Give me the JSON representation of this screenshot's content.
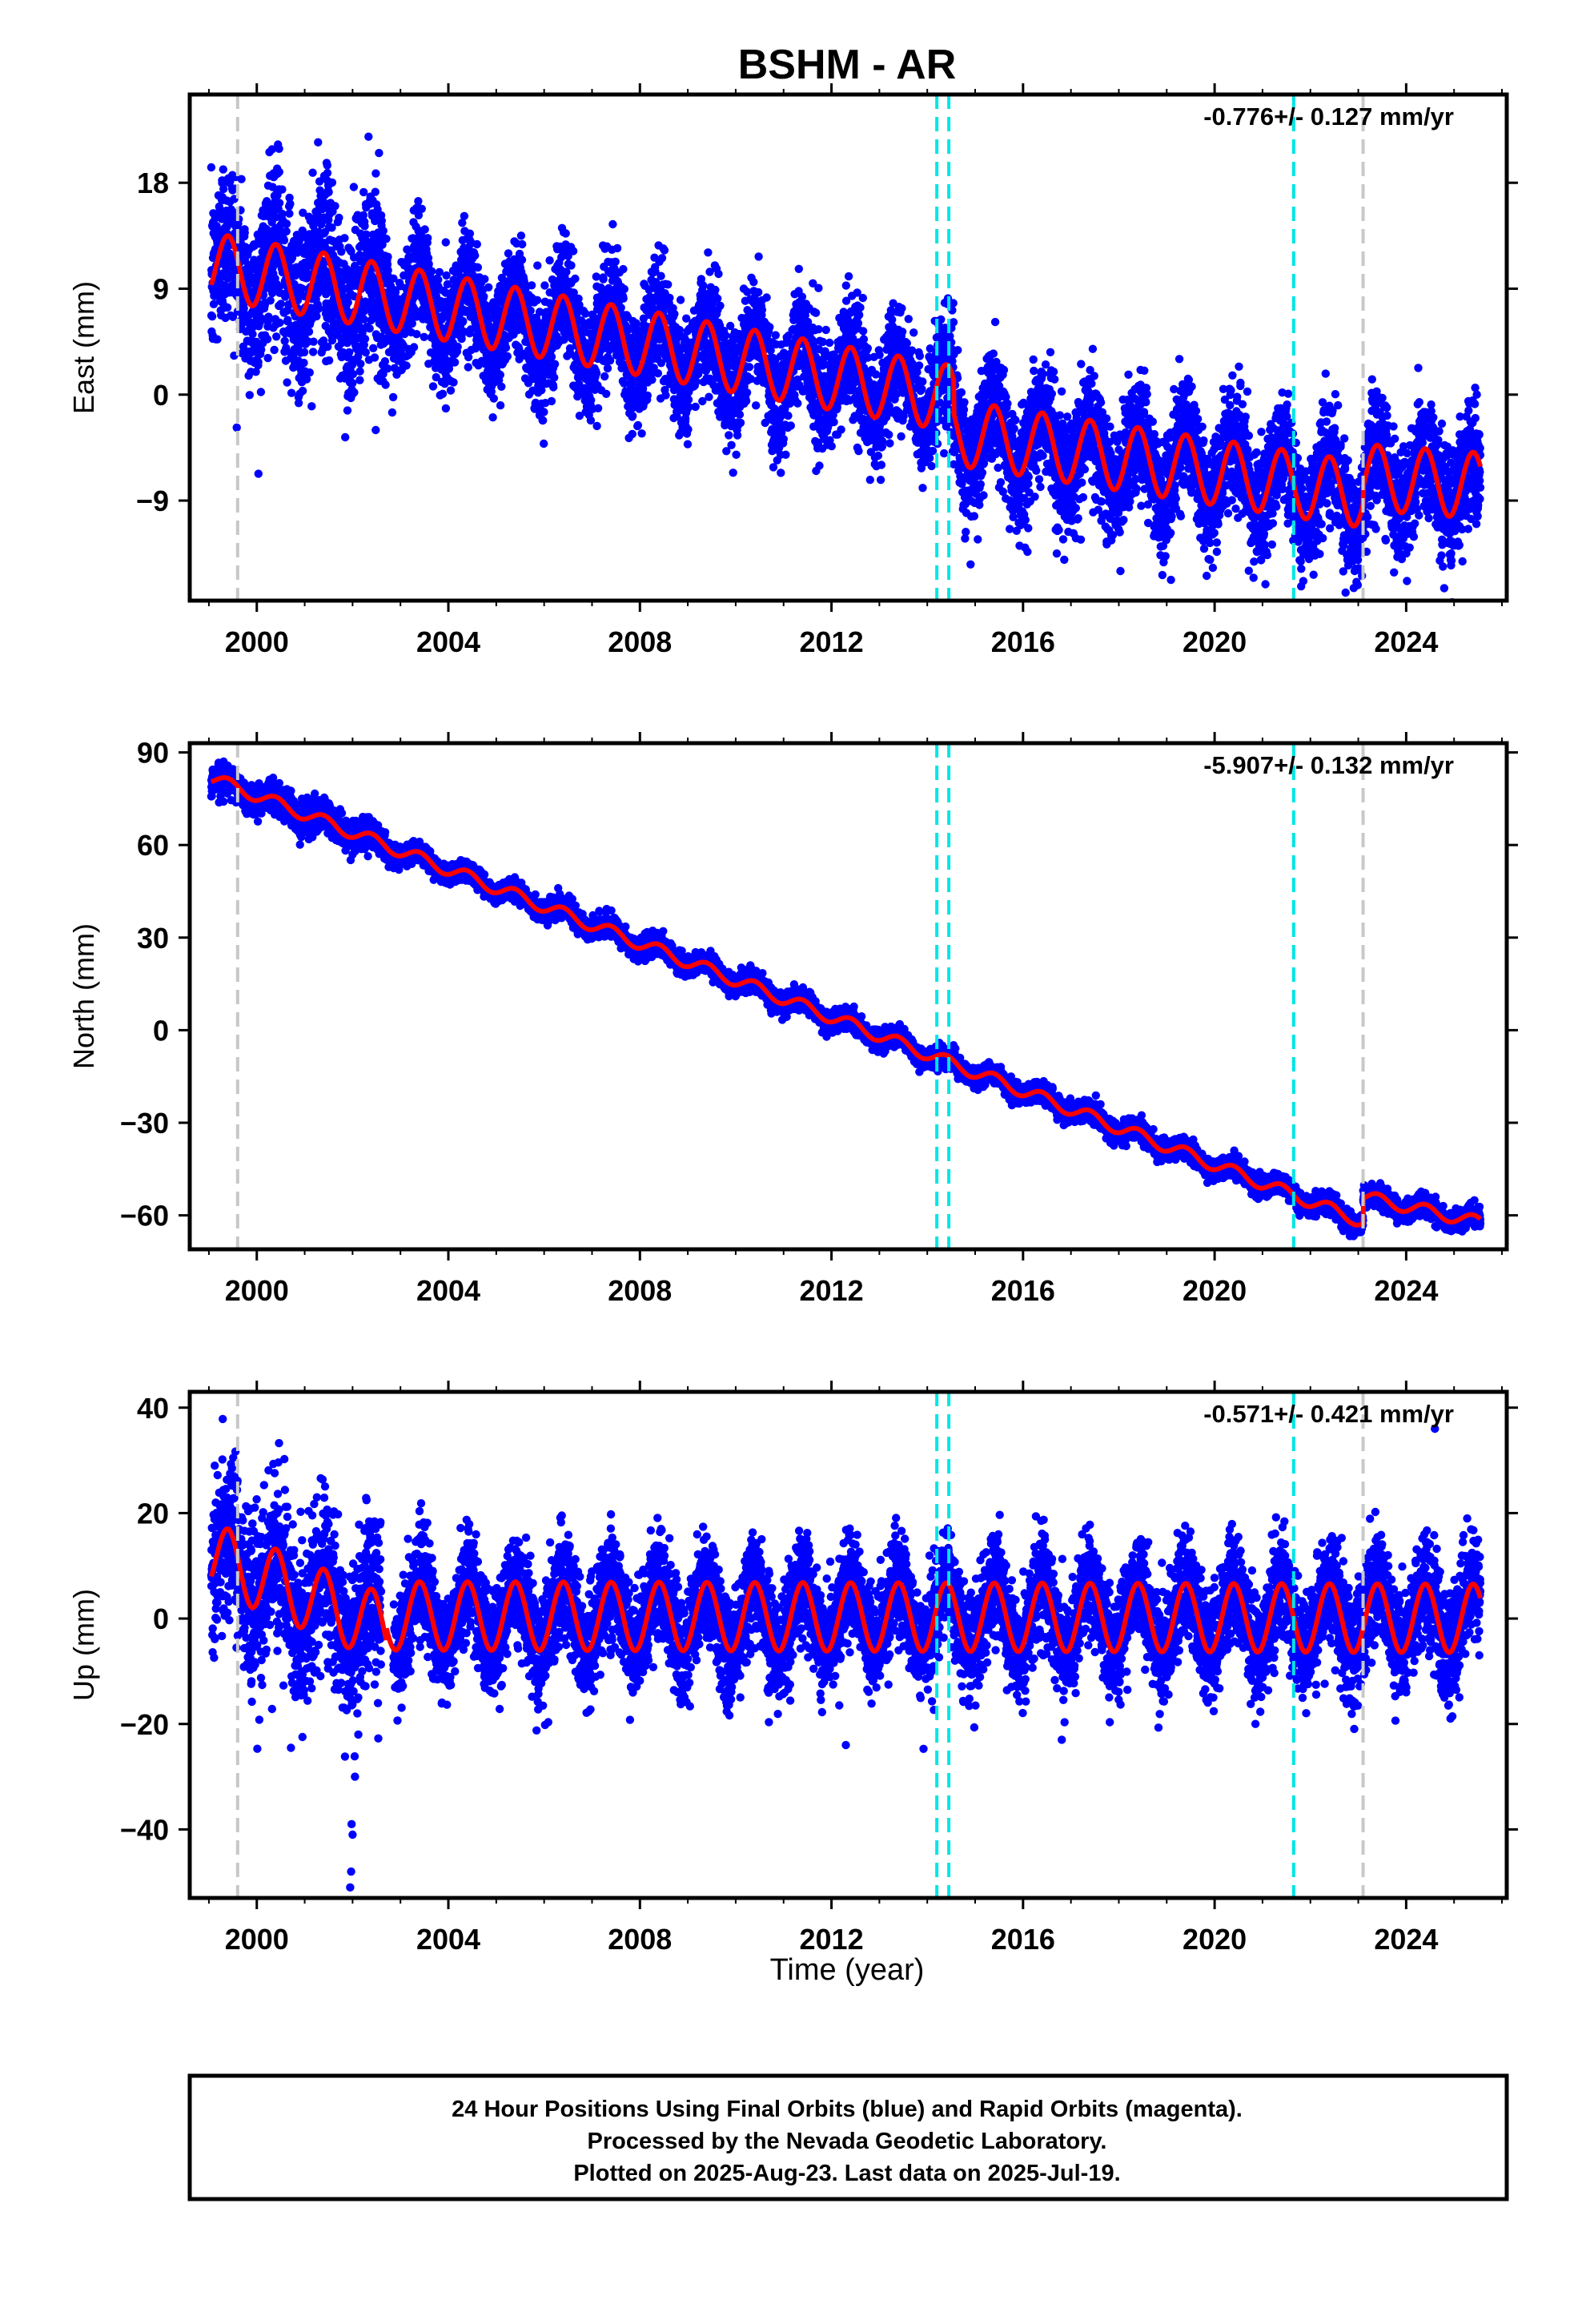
{
  "title": "BSHM - AR",
  "colors": {
    "final_orbits": "#0000ff",
    "model": "#ff0000",
    "equipment_change": "#c8c8c8",
    "earthquake": "#00e5e5",
    "frame": "#000000"
  },
  "chart_data": [
    {
      "type": "scatter",
      "name": "east",
      "ylabel": "East (mm)",
      "rate_text": "-0.776+/- 0.127 mm/yr",
      "xlim": [
        1998.6,
        2026.1
      ],
      "ylim": [
        -17.5,
        25.5
      ],
      "yticks": [
        18,
        9,
        0,
        -9
      ],
      "ytick_labels": [
        "18",
        "9",
        "0",
        "−9"
      ],
      "xticks": [
        2000,
        2004,
        2008,
        2012,
        2016,
        2020,
        2024
      ],
      "xtick_labels": [
        "2000",
        "2004",
        "2008",
        "2012",
        "2016",
        "2020",
        "2024"
      ],
      "grey_dashed_lines_at": [
        1999.6,
        2023.1
      ],
      "cyan_dashed_lines_at": [
        2014.2,
        2014.45,
        2021.65
      ],
      "model_trend": [
        {
          "from": 1999.0,
          "to": 2014.55,
          "intercept_at_start": 11.0,
          "slope_mm_per_yr": -0.73
        },
        {
          "from": 2014.55,
          "to": 2023.1,
          "intercept_at_start": -3.2,
          "slope_mm_per_yr": -0.62
        },
        {
          "from": 2023.1,
          "to": 2025.55,
          "intercept_at_start": -7.0,
          "slope_mm_per_yr": -0.3
        }
      ],
      "seasonal_amplitude_mm": 2.8,
      "scatter_noise_mm": 2.4
    },
    {
      "type": "scatter",
      "name": "north",
      "ylabel": "North (mm)",
      "rate_text": "-5.907+/- 0.132 mm/yr",
      "xlim": [
        1998.6,
        2026.1
      ],
      "ylim": [
        -71,
        93
      ],
      "yticks": [
        90,
        60,
        30,
        0,
        -30,
        -60
      ],
      "ytick_labels": [
        "90",
        "60",
        "30",
        "0",
        "−30",
        "−60"
      ],
      "xticks": [
        2000,
        2004,
        2008,
        2012,
        2016,
        2020,
        2024
      ],
      "xtick_labels": [
        "2000",
        "2004",
        "2008",
        "2012",
        "2016",
        "2020",
        "2024"
      ],
      "grey_dashed_lines_at": [
        1999.6,
        2023.1
      ],
      "cyan_dashed_lines_at": [
        2014.2,
        2014.45,
        2021.65
      ],
      "model_trend": [
        {
          "from": 1999.0,
          "to": 2023.1,
          "intercept_at_start": 82.0,
          "slope_mm_per_yr": -5.98
        },
        {
          "from": 2023.1,
          "to": 2025.55,
          "intercept_at_start": -54.0,
          "slope_mm_per_yr": -3.4
        }
      ],
      "seasonal_amplitude_mm": 2.0,
      "scatter_noise_mm": 1.6
    },
    {
      "type": "scatter",
      "name": "up",
      "ylabel": "Up (mm)",
      "rate_text": "-0.571+/- 0.421 mm/yr",
      "xlim": [
        1998.6,
        2026.1
      ],
      "ylim": [
        -53,
        43
      ],
      "yticks": [
        40,
        20,
        0,
        -20,
        -40
      ],
      "ytick_labels": [
        "40",
        "20",
        "0",
        "−20",
        "−40"
      ],
      "xticks": [
        2000,
        2004,
        2008,
        2012,
        2016,
        2020,
        2024
      ],
      "xtick_labels": [
        "2000",
        "2004",
        "2008",
        "2012",
        "2016",
        "2020",
        "2024"
      ],
      "xlabel": "Time (year)",
      "grey_dashed_lines_at": [
        1999.6,
        2023.1
      ],
      "cyan_dashed_lines_at": [
        2014.2,
        2014.45,
        2021.65
      ],
      "model_trend": [
        {
          "from": 1999.0,
          "to": 2002.7,
          "intercept_at_start": 12.0,
          "slope_mm_per_yr": -3.8
        },
        {
          "from": 2002.7,
          "to": 2025.55,
          "intercept_at_start": 0.5,
          "slope_mm_per_yr": -0.02
        }
      ],
      "seasonal_amplitude_mm": 6.5,
      "scatter_noise_mm": 5.0,
      "outliers": [
        {
          "x": 2002.1,
          "y": -18
        },
        {
          "x": 2002.12,
          "y": -22
        },
        {
          "x": 2002.05,
          "y": -30
        },
        {
          "x": 2001.98,
          "y": -39
        },
        {
          "x": 2002.0,
          "y": -41
        },
        {
          "x": 2001.97,
          "y": -48
        },
        {
          "x": 2001.95,
          "y": -51
        },
        {
          "x": 2012.3,
          "y": -24
        },
        {
          "x": 2024.6,
          "y": 36
        }
      ]
    }
  ],
  "footer": {
    "line1": "24 Hour Positions Using Final Orbits (blue) and Rapid Orbits (magenta).",
    "line2": "Processed by the Nevada Geodetic Laboratory.",
    "line3": "Plotted on 2025-Aug-23. Last data on 2025-Jul-19."
  }
}
